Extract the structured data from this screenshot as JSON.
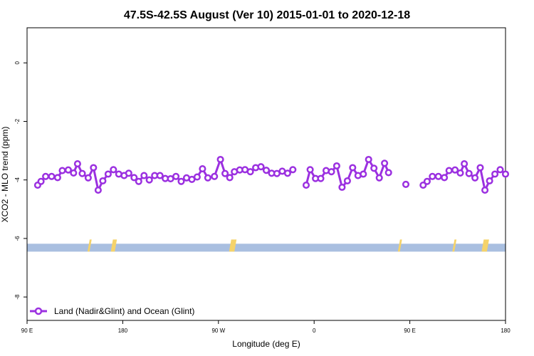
{
  "chart_data": {
    "type": "line",
    "title": "47.5S-42.5S August (Ver 10)   2015-01-01 to 2020-12-18",
    "xlabel": "Longitude (deg E)",
    "ylabel": "XCO2 - MLO trend (ppm)",
    "xlim": [
      90,
      450
    ],
    "ylim": [
      -8.8,
      1.2
    ],
    "x_ticks": [
      {
        "value": 90,
        "label": "90 E"
      },
      {
        "value": 162,
        "label": "180"
      },
      {
        "value": 234,
        "label": "90 W"
      },
      {
        "value": 306,
        "label": "0"
      },
      {
        "value": 378,
        "label": "90 E"
      },
      {
        "value": 450,
        "label": "180"
      }
    ],
    "y_ticks": [
      {
        "value": 0,
        "label": "0"
      },
      {
        "value": -2,
        "label": "-2"
      },
      {
        "value": -4,
        "label": "-4"
      },
      {
        "value": -6,
        "label": "-6"
      },
      {
        "value": -8,
        "label": "-8"
      }
    ],
    "series": [
      {
        "name": "Land (Nadir&Glint) and Ocean (Glint)",
        "color": "#9b30e0",
        "segments": [
          [
            [
              98,
              -4.18
            ],
            [
              100.5,
              -4.05
            ],
            [
              104,
              -3.88
            ],
            [
              108.5,
              -3.88
            ],
            [
              113,
              -3.92
            ],
            [
              116.5,
              -3.68
            ],
            [
              121,
              -3.66
            ],
            [
              125,
              -3.76
            ],
            [
              128,
              -3.45
            ],
            [
              131.5,
              -3.78
            ],
            [
              136,
              -3.93
            ],
            [
              140,
              -3.58
            ],
            [
              143.5,
              -4.35
            ],
            [
              147,
              -4.03
            ],
            [
              151,
              -3.8
            ],
            [
              155,
              -3.65
            ],
            [
              159,
              -3.8
            ],
            [
              163,
              -3.85
            ],
            [
              166.5,
              -3.77
            ],
            [
              170.5,
              -3.92
            ],
            [
              174,
              -4.05
            ],
            [
              178,
              -3.85
            ],
            [
              182,
              -4.0
            ],
            [
              186,
              -3.85
            ],
            [
              190,
              -3.85
            ],
            [
              194,
              -3.95
            ],
            [
              198,
              -3.96
            ],
            [
              202,
              -3.88
            ],
            [
              206,
              -4.05
            ],
            [
              210,
              -3.93
            ],
            [
              214,
              -3.98
            ],
            [
              218,
              -3.9
            ],
            [
              222,
              -3.62
            ],
            [
              226,
              -3.93
            ],
            [
              231,
              -3.88
            ],
            [
              235.5,
              -3.3
            ],
            [
              239,
              -3.78
            ],
            [
              242.5,
              -3.92
            ],
            [
              246,
              -3.72
            ],
            [
              250,
              -3.66
            ],
            [
              254,
              -3.65
            ],
            [
              258,
              -3.72
            ],
            [
              262,
              -3.58
            ],
            [
              266,
              -3.55
            ],
            [
              270,
              -3.67
            ],
            [
              274,
              -3.77
            ],
            [
              278,
              -3.78
            ],
            [
              282,
              -3.7
            ],
            [
              286,
              -3.77
            ],
            [
              290,
              -3.65
            ]
          ],
          [
            [
              300,
              -4.18
            ],
            [
              303,
              -3.65
            ],
            [
              307,
              -3.95
            ],
            [
              311,
              -3.95
            ],
            [
              315,
              -3.68
            ],
            [
              319,
              -3.72
            ],
            [
              323,
              -3.52
            ],
            [
              327,
              -4.25
            ],
            [
              331,
              -4.03
            ],
            [
              335,
              -3.58
            ],
            [
              339,
              -3.85
            ],
            [
              343,
              -3.8
            ],
            [
              347,
              -3.3
            ],
            [
              351,
              -3.6
            ],
            [
              355,
              -3.93
            ],
            [
              359,
              -3.43
            ],
            [
              362,
              -3.75
            ]
          ],
          [
            [
              375,
              -4.15
            ]
          ],
          [
            [
              388,
              -4.18
            ],
            [
              391,
              -4.05
            ],
            [
              395,
              -3.88
            ],
            [
              399.5,
              -3.88
            ],
            [
              404,
              -3.92
            ],
            [
              407.5,
              -3.68
            ],
            [
              412,
              -3.66
            ],
            [
              416,
              -3.76
            ],
            [
              419,
              -3.45
            ],
            [
              422.5,
              -3.78
            ],
            [
              427,
              -3.93
            ],
            [
              431,
              -3.58
            ],
            [
              434.5,
              -4.35
            ],
            [
              438,
              -4.03
            ],
            [
              442,
              -3.8
            ],
            [
              446,
              -3.65
            ],
            [
              450,
              -3.8
            ]
          ]
        ]
      }
    ],
    "background_band": {
      "y_range": [
        -6.45,
        -6.18
      ],
      "ocean_color": "#a9bfe0",
      "land_color": "#f5d36a",
      "land_x_ranges": [
        [
          135.5,
          137
        ],
        [
          153,
          156
        ],
        [
          242,
          246
        ],
        [
          369,
          370.5
        ],
        [
          410,
          411.5
        ],
        [
          432,
          436
        ]
      ]
    },
    "grid": false,
    "legend": {
      "location": "bottom-left"
    }
  }
}
